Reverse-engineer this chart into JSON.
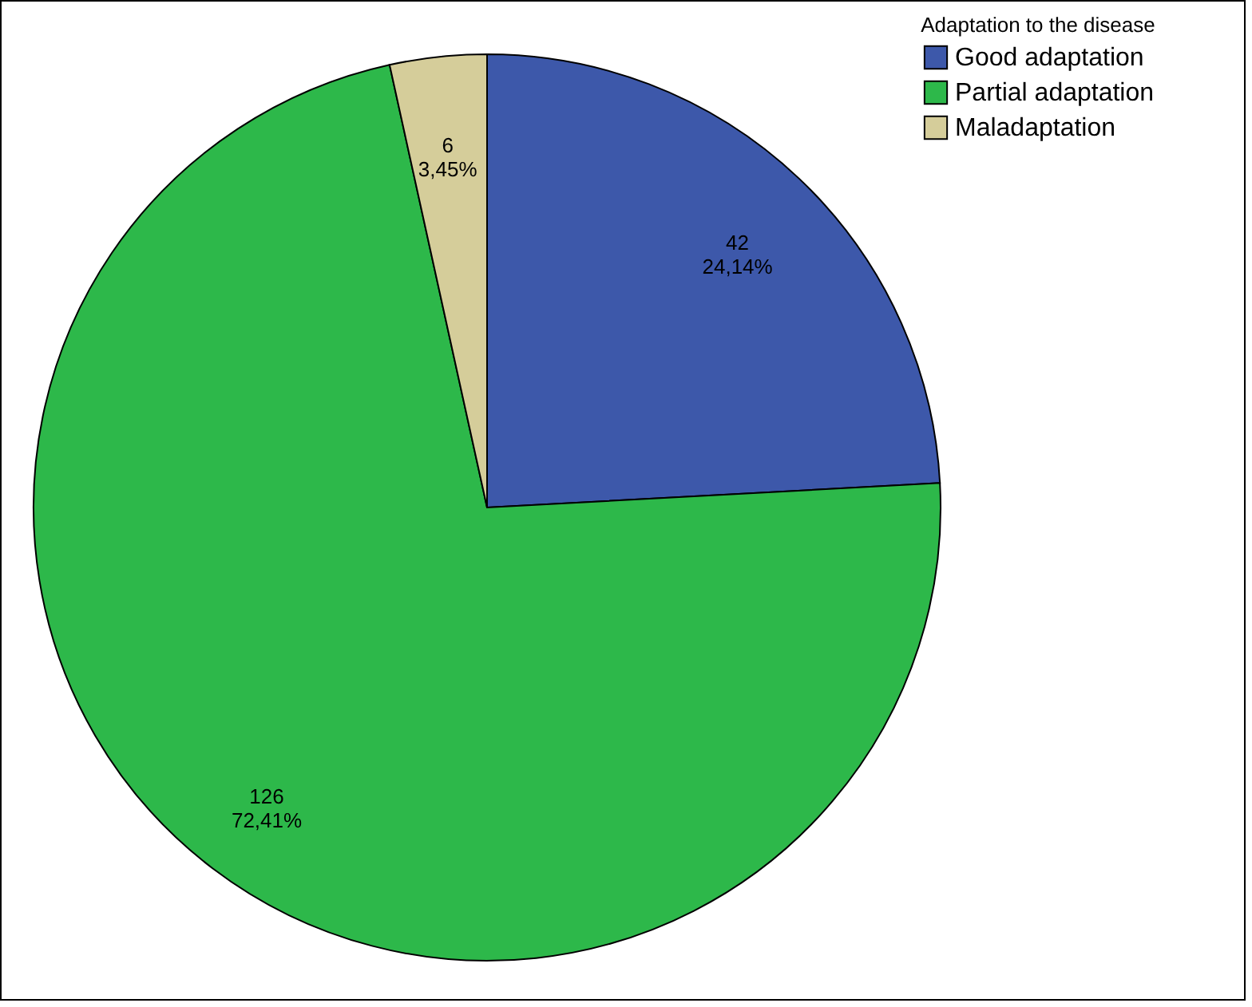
{
  "chart_data": {
    "type": "pie",
    "legend_title": "Adaptation to the disease",
    "legend": "top right",
    "categories": [
      "Good adaptation",
      "Partial adaptation",
      "Maladaptation"
    ],
    "values": [
      42,
      126,
      6
    ],
    "colors": [
      "#3d58aa",
      "#2db84a",
      "#d5cd9a"
    ],
    "value_labels": [
      "42\n24,14%",
      "126\n72,41%",
      "6\n3,45%"
    ]
  }
}
